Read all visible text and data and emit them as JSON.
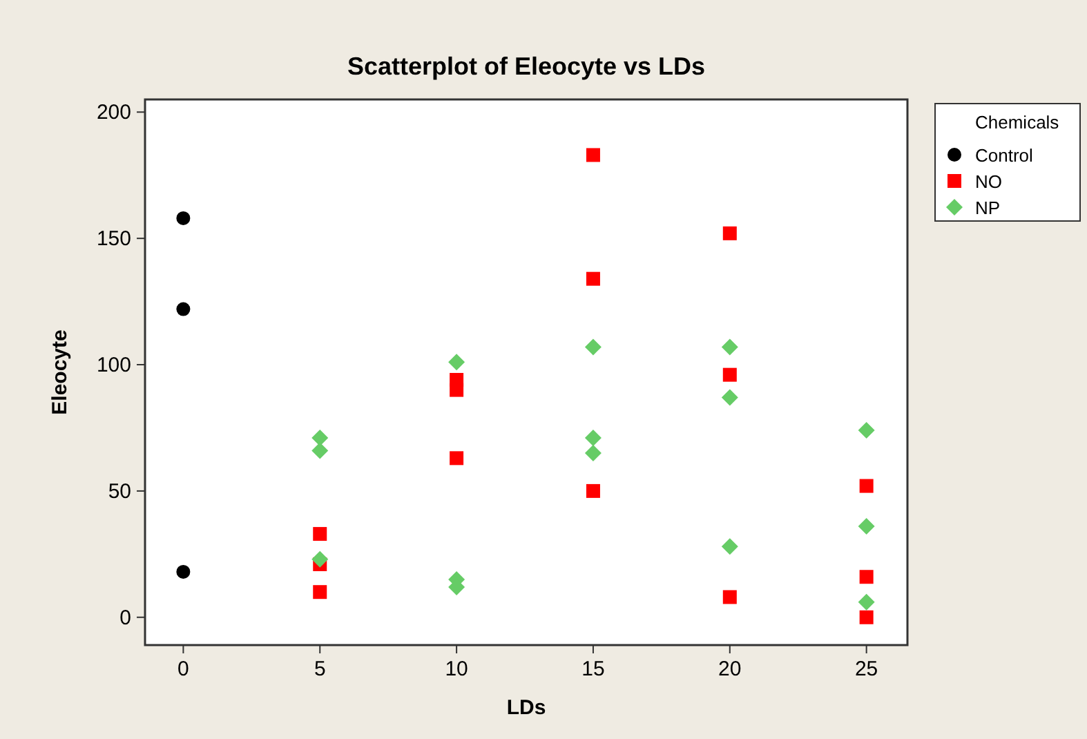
{
  "chart_data": {
    "type": "scatter",
    "title": "Scatterplot of Eleocyte vs LDs",
    "xlabel": "LDs",
    "ylabel": "Eleocyte",
    "legend_title": "Chemicals",
    "legend": "right",
    "xlim": [
      -1.4,
      26.5
    ],
    "ylim": [
      -11,
      205
    ],
    "xticks": [
      0,
      5,
      10,
      15,
      20,
      25
    ],
    "yticks": [
      0,
      50,
      100,
      150,
      200
    ],
    "grid": false,
    "series": [
      {
        "name": "Control",
        "color": "#000000",
        "marker": "circle",
        "x": [
          0,
          0,
          0
        ],
        "values": [
          158,
          122,
          18
        ]
      },
      {
        "name": "NO",
        "color": "#ff0000",
        "marker": "square",
        "x": [
          5,
          5,
          5,
          10,
          10,
          10,
          15,
          15,
          15,
          20,
          20,
          20,
          25,
          25,
          25
        ],
        "values": [
          33,
          21,
          10,
          94,
          90,
          63,
          183,
          134,
          50,
          152,
          96,
          8,
          52,
          16,
          0
        ]
      },
      {
        "name": "NP",
        "color": "#66cc66",
        "marker": "diamond",
        "x": [
          5,
          5,
          5,
          10,
          10,
          10,
          15,
          15,
          15,
          20,
          20,
          20,
          25,
          25,
          25
        ],
        "values": [
          71,
          66,
          23,
          101,
          15,
          12,
          107,
          71,
          65,
          107,
          87,
          28,
          74,
          36,
          6
        ]
      }
    ]
  }
}
